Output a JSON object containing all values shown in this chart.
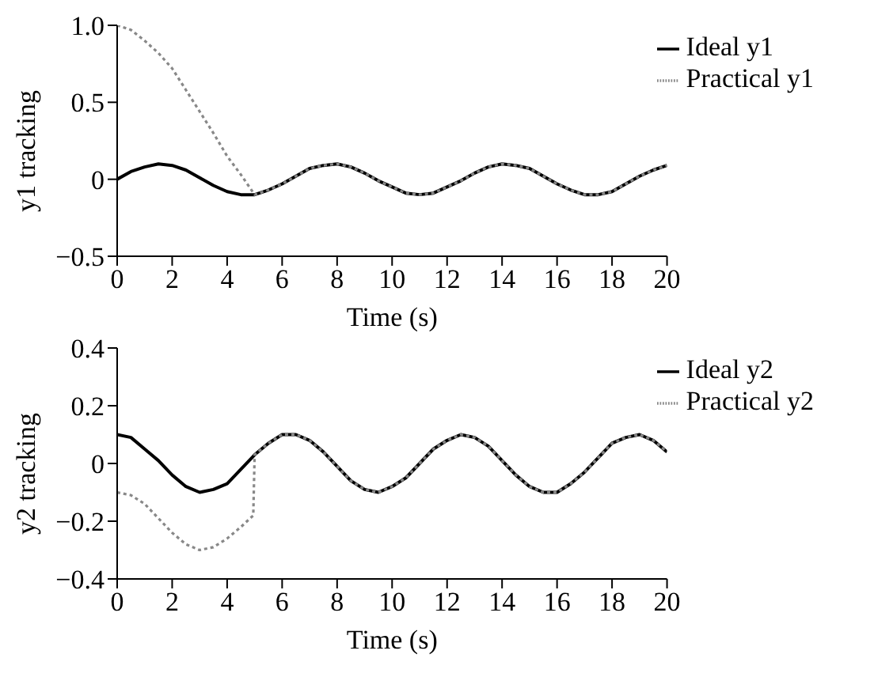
{
  "chart_data": [
    {
      "type": "line",
      "xlabel": "Time (s)",
      "ylabel": "y1 tracking",
      "xlim": [
        0,
        20
      ],
      "xticks": [
        0,
        2,
        4,
        6,
        8,
        10,
        12,
        14,
        16,
        18,
        20
      ],
      "ylim": [
        -0.5,
        1
      ],
      "yticks": [
        -0.5,
        0,
        0.5,
        {
          "value": 1,
          "label": "1.0"
        }
      ],
      "grid": false,
      "legend": "top right",
      "x": [
        0,
        0.5,
        1,
        1.5,
        2,
        2.5,
        3,
        3.5,
        4,
        4.5,
        5,
        5.5,
        6,
        6.5,
        7,
        7.5,
        8,
        8.5,
        9,
        9.5,
        10,
        10.5,
        11,
        11.5,
        12,
        12.5,
        13,
        13.5,
        14,
        14.5,
        15,
        15.5,
        16,
        16.5,
        17,
        17.5,
        18,
        18.5,
        19,
        19.5,
        20
      ],
      "series": [
        {
          "name": "Ideal y1",
          "color": "#000000",
          "line_style": "solid",
          "values": [
            0,
            0.05,
            0.08,
            0.1,
            0.09,
            0.06,
            0.01,
            -0.04,
            -0.08,
            -0.1,
            -0.1,
            -0.07,
            -0.03,
            0.02,
            0.07,
            0.09,
            0.1,
            0.08,
            0.04,
            -0.01,
            -0.05,
            -0.09,
            -0.1,
            -0.09,
            -0.05,
            -0.01,
            0.04,
            0.08,
            0.1,
            0.09,
            0.07,
            0.02,
            -0.03,
            -0.07,
            -0.1,
            -0.1,
            -0.08,
            -0.03,
            0.02,
            0.06,
            0.09
          ]
        },
        {
          "name": "Practical y1",
          "color": "#888888",
          "line_style": "dotted",
          "values": [
            1,
            0.97,
            0.9,
            0.82,
            0.72,
            0.58,
            0.44,
            0.3,
            0.15,
            0.03,
            -0.1,
            -0.07,
            -0.03,
            0.02,
            0.07,
            0.09,
            0.1,
            0.08,
            0.04,
            -0.01,
            -0.05,
            -0.09,
            -0.1,
            -0.09,
            -0.05,
            -0.01,
            0.04,
            0.08,
            0.1,
            0.09,
            0.07,
            0.02,
            -0.03,
            -0.07,
            -0.1,
            -0.1,
            -0.08,
            -0.03,
            0.02,
            0.06,
            0.09
          ]
        }
      ]
    },
    {
      "type": "line",
      "xlabel": "Time (s)",
      "ylabel": "y2 tracking",
      "xlim": [
        0,
        20
      ],
      "xticks": [
        0,
        2,
        4,
        6,
        8,
        10,
        12,
        14,
        16,
        18,
        20
      ],
      "ylim": [
        -0.4,
        0.4
      ],
      "yticks": [
        -0.4,
        -0.2,
        0,
        0.2,
        0.4
      ],
      "grid": false,
      "legend": "top right",
      "x": [
        0,
        0.5,
        1,
        1.5,
        2,
        2.5,
        3,
        3.5,
        4,
        4.5,
        5,
        5.5,
        6,
        6.5,
        7,
        7.5,
        8,
        8.5,
        9,
        9.5,
        10,
        10.5,
        11,
        11.5,
        12,
        12.5,
        13,
        13.5,
        14,
        14.5,
        15,
        15.5,
        16,
        16.5,
        17,
        17.5,
        18,
        18.5,
        19,
        19.5,
        20
      ],
      "series": [
        {
          "name": "Ideal y2",
          "color": "#000000",
          "line_style": "solid",
          "values": [
            0.1,
            0.09,
            0.05,
            0.01,
            -0.04,
            -0.08,
            -0.1,
            -0.09,
            -0.07,
            -0.02,
            0.03,
            0.07,
            0.1,
            0.1,
            0.08,
            0.04,
            -0.01,
            -0.06,
            -0.09,
            -0.1,
            -0.08,
            -0.05,
            0,
            0.05,
            0.08,
            0.1,
            0.09,
            0.06,
            0.01,
            -0.04,
            -0.08,
            -0.1,
            -0.1,
            -0.07,
            -0.03,
            0.02,
            0.07,
            0.09,
            0.1,
            0.08,
            0.04
          ]
        },
        {
          "name": "Practical y2",
          "color": "#888888",
          "line_style": "dotted",
          "x": [
            0,
            0.5,
            1,
            1.5,
            2,
            2.5,
            3,
            3.5,
            4,
            4.5,
            4.95,
            5,
            5.5,
            6,
            6.5,
            7,
            7.5,
            8,
            8.5,
            9,
            9.5,
            10,
            10.5,
            11,
            11.5,
            12,
            12.5,
            13,
            13.5,
            14,
            14.5,
            15,
            15.5,
            16,
            16.5,
            17,
            17.5,
            18,
            18.5,
            19,
            19.5,
            20
          ],
          "values": [
            -0.1,
            -0.11,
            -0.14,
            -0.19,
            -0.24,
            -0.28,
            -0.3,
            -0.29,
            -0.26,
            -0.22,
            -0.18,
            0.03,
            0.07,
            0.1,
            0.1,
            0.08,
            0.04,
            -0.01,
            -0.06,
            -0.09,
            -0.1,
            -0.08,
            -0.05,
            0,
            0.05,
            0.08,
            0.1,
            0.09,
            0.06,
            0.01,
            -0.04,
            -0.08,
            -0.1,
            -0.1,
            -0.07,
            -0.03,
            0.02,
            0.07,
            0.09,
            0.1,
            0.08,
            0.04
          ]
        }
      ]
    }
  ]
}
